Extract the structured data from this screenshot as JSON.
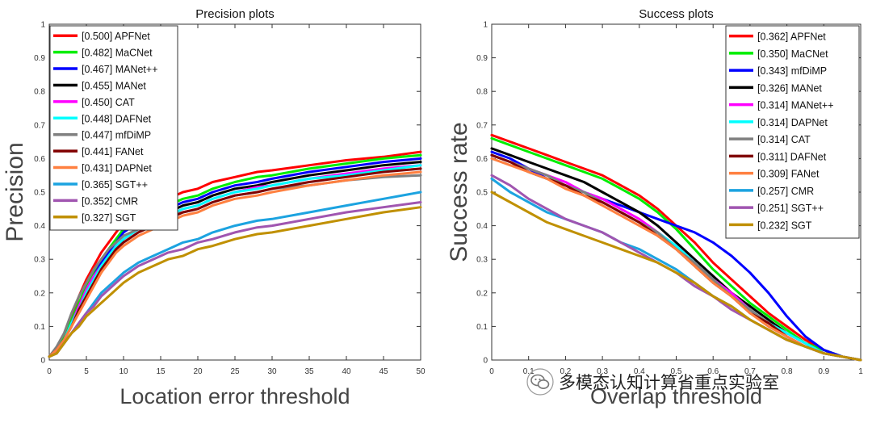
{
  "chart_data": [
    {
      "type": "line",
      "title": "Precision plots",
      "xlabel": "Location error threshold",
      "ylabel": "Precision",
      "xlim": [
        0,
        50
      ],
      "ylim": [
        0,
        1
      ],
      "xticks": [
        0,
        5,
        10,
        15,
        20,
        25,
        30,
        35,
        40,
        45,
        50
      ],
      "yticks": [
        0,
        0.1,
        0.2,
        0.3,
        0.4,
        0.5,
        0.6,
        0.7,
        0.8,
        0.9,
        1
      ],
      "x": [
        0,
        1,
        2,
        3,
        4,
        5,
        6,
        7,
        8,
        9,
        10,
        12,
        14,
        16,
        18,
        20,
        22,
        25,
        28,
        30,
        35,
        40,
        45,
        50
      ],
      "legend_position": "top-left",
      "series": [
        {
          "name": "APFNet",
          "score": "0.500",
          "color": "#ff0000",
          "values": [
            0.01,
            0.03,
            0.07,
            0.13,
            0.19,
            0.24,
            0.28,
            0.32,
            0.35,
            0.38,
            0.41,
            0.44,
            0.46,
            0.48,
            0.5,
            0.51,
            0.53,
            0.545,
            0.56,
            0.565,
            0.58,
            0.595,
            0.605,
            0.62
          ]
        },
        {
          "name": "MaCNet",
          "score": "0.482",
          "color": "#00ee00",
          "values": [
            0.01,
            0.03,
            0.07,
            0.12,
            0.17,
            0.22,
            0.26,
            0.3,
            0.33,
            0.36,
            0.39,
            0.42,
            0.44,
            0.46,
            0.48,
            0.49,
            0.51,
            0.53,
            0.545,
            0.55,
            0.57,
            0.585,
            0.6,
            0.61
          ]
        },
        {
          "name": "MANet++",
          "score": "0.467",
          "color": "#0000ff",
          "values": [
            0.01,
            0.03,
            0.06,
            0.11,
            0.16,
            0.21,
            0.25,
            0.29,
            0.32,
            0.35,
            0.38,
            0.41,
            0.43,
            0.45,
            0.47,
            0.48,
            0.5,
            0.52,
            0.53,
            0.54,
            0.56,
            0.575,
            0.59,
            0.6
          ]
        },
        {
          "name": "MANet",
          "score": "0.455",
          "color": "#000000",
          "values": [
            0.01,
            0.03,
            0.06,
            0.11,
            0.15,
            0.19,
            0.23,
            0.27,
            0.3,
            0.33,
            0.36,
            0.39,
            0.42,
            0.44,
            0.46,
            0.47,
            0.49,
            0.51,
            0.52,
            0.53,
            0.55,
            0.565,
            0.58,
            0.59
          ]
        },
        {
          "name": "CAT",
          "score": "0.450",
          "color": "#ff00ff",
          "values": [
            0.01,
            0.03,
            0.06,
            0.11,
            0.16,
            0.21,
            0.25,
            0.28,
            0.31,
            0.34,
            0.36,
            0.39,
            0.41,
            0.43,
            0.45,
            0.46,
            0.48,
            0.5,
            0.515,
            0.52,
            0.54,
            0.555,
            0.57,
            0.58
          ]
        },
        {
          "name": "DAFNet",
          "score": "0.448",
          "color": "#00ffff",
          "values": [
            0.01,
            0.03,
            0.06,
            0.11,
            0.15,
            0.2,
            0.24,
            0.28,
            0.31,
            0.34,
            0.36,
            0.39,
            0.41,
            0.43,
            0.45,
            0.46,
            0.48,
            0.5,
            0.51,
            0.52,
            0.54,
            0.55,
            0.565,
            0.58
          ]
        },
        {
          "name": "mfDiMP",
          "score": "0.447",
          "color": "#808080",
          "values": [
            0.01,
            0.04,
            0.08,
            0.14,
            0.19,
            0.23,
            0.27,
            0.3,
            0.33,
            0.35,
            0.37,
            0.39,
            0.41,
            0.43,
            0.44,
            0.45,
            0.47,
            0.49,
            0.5,
            0.51,
            0.52,
            0.535,
            0.545,
            0.55
          ]
        },
        {
          "name": "FANet",
          "score": "0.441",
          "color": "#800000",
          "values": [
            0.01,
            0.03,
            0.06,
            0.1,
            0.15,
            0.19,
            0.23,
            0.27,
            0.3,
            0.33,
            0.35,
            0.38,
            0.4,
            0.42,
            0.44,
            0.45,
            0.47,
            0.49,
            0.5,
            0.51,
            0.53,
            0.545,
            0.56,
            0.57
          ]
        },
        {
          "name": "DAPNet",
          "score": "0.431",
          "color": "#ff8040",
          "values": [
            0.01,
            0.03,
            0.06,
            0.1,
            0.14,
            0.18,
            0.22,
            0.26,
            0.29,
            0.32,
            0.34,
            0.37,
            0.39,
            0.41,
            0.43,
            0.44,
            0.46,
            0.48,
            0.49,
            0.5,
            0.52,
            0.535,
            0.55,
            0.56
          ]
        },
        {
          "name": "SGT++",
          "score": "0.365",
          "color": "#1ca3e0",
          "values": [
            0.01,
            0.02,
            0.05,
            0.08,
            0.11,
            0.14,
            0.17,
            0.2,
            0.22,
            0.24,
            0.26,
            0.29,
            0.31,
            0.33,
            0.35,
            0.36,
            0.38,
            0.4,
            0.415,
            0.42,
            0.44,
            0.46,
            0.48,
            0.5
          ]
        },
        {
          "name": "CMR",
          "score": "0.352",
          "color": "#a055b0",
          "values": [
            0.01,
            0.02,
            0.05,
            0.08,
            0.11,
            0.14,
            0.16,
            0.19,
            0.21,
            0.23,
            0.25,
            0.28,
            0.3,
            0.32,
            0.33,
            0.35,
            0.36,
            0.38,
            0.395,
            0.4,
            0.42,
            0.44,
            0.455,
            0.47
          ]
        },
        {
          "name": "SGT",
          "score": "0.327",
          "color": "#c09000",
          "values": [
            0.01,
            0.02,
            0.05,
            0.08,
            0.1,
            0.13,
            0.15,
            0.17,
            0.19,
            0.21,
            0.23,
            0.26,
            0.28,
            0.3,
            0.31,
            0.33,
            0.34,
            0.36,
            0.375,
            0.38,
            0.4,
            0.42,
            0.44,
            0.455
          ]
        }
      ]
    },
    {
      "type": "line",
      "title": "Success plots",
      "xlabel": "Overlap threshold",
      "ylabel": "Success rate",
      "xlim": [
        0,
        1
      ],
      "ylim": [
        0,
        1
      ],
      "xticks": [
        0,
        0.1,
        0.2,
        0.3,
        0.4,
        0.5,
        0.6,
        0.7,
        0.8,
        0.9,
        1
      ],
      "yticks": [
        0,
        0.1,
        0.2,
        0.3,
        0.4,
        0.5,
        0.6,
        0.7,
        0.8,
        0.9,
        1
      ],
      "x": [
        0,
        0.05,
        0.1,
        0.15,
        0.2,
        0.25,
        0.3,
        0.35,
        0.4,
        0.45,
        0.5,
        0.55,
        0.6,
        0.65,
        0.7,
        0.75,
        0.8,
        0.85,
        0.9,
        0.95,
        1.0
      ],
      "legend_position": "top-right",
      "series": [
        {
          "name": "APFNet",
          "score": "0.362",
          "color": "#ff0000",
          "values": [
            0.67,
            0.65,
            0.63,
            0.61,
            0.59,
            0.57,
            0.55,
            0.52,
            0.49,
            0.45,
            0.4,
            0.35,
            0.29,
            0.24,
            0.19,
            0.14,
            0.1,
            0.06,
            0.03,
            0.01,
            0.0
          ]
        },
        {
          "name": "MaCNet",
          "score": "0.350",
          "color": "#00ee00",
          "values": [
            0.66,
            0.64,
            0.62,
            0.6,
            0.58,
            0.56,
            0.54,
            0.51,
            0.48,
            0.44,
            0.39,
            0.33,
            0.27,
            0.22,
            0.17,
            0.13,
            0.09,
            0.05,
            0.03,
            0.01,
            0.0
          ]
        },
        {
          "name": "mfDiMP",
          "score": "0.343",
          "color": "#0000ff",
          "values": [
            0.62,
            0.6,
            0.57,
            0.54,
            0.52,
            0.5,
            0.48,
            0.46,
            0.44,
            0.42,
            0.4,
            0.38,
            0.35,
            0.31,
            0.26,
            0.2,
            0.13,
            0.07,
            0.03,
            0.01,
            0.0
          ]
        },
        {
          "name": "MANet",
          "score": "0.326",
          "color": "#000000",
          "values": [
            0.63,
            0.61,
            0.59,
            0.57,
            0.55,
            0.53,
            0.5,
            0.47,
            0.44,
            0.4,
            0.35,
            0.3,
            0.25,
            0.2,
            0.16,
            0.12,
            0.08,
            0.05,
            0.02,
            0.01,
            0.0
          ]
        },
        {
          "name": "MANet++",
          "score": "0.314",
          "color": "#ff00ff",
          "values": [
            0.61,
            0.59,
            0.57,
            0.55,
            0.53,
            0.5,
            0.48,
            0.45,
            0.42,
            0.38,
            0.34,
            0.29,
            0.24,
            0.2,
            0.15,
            0.11,
            0.08,
            0.05,
            0.02,
            0.01,
            0.0
          ]
        },
        {
          "name": "DAPNet",
          "score": "0.314",
          "color": "#00ffff",
          "values": [
            0.61,
            0.59,
            0.56,
            0.54,
            0.52,
            0.5,
            0.47,
            0.44,
            0.41,
            0.38,
            0.34,
            0.29,
            0.24,
            0.19,
            0.15,
            0.11,
            0.08,
            0.05,
            0.02,
            0.01,
            0.0
          ]
        },
        {
          "name": "CAT",
          "score": "0.314",
          "color": "#808080",
          "values": [
            0.61,
            0.59,
            0.57,
            0.55,
            0.52,
            0.5,
            0.47,
            0.44,
            0.41,
            0.38,
            0.33,
            0.29,
            0.24,
            0.19,
            0.15,
            0.11,
            0.07,
            0.04,
            0.02,
            0.01,
            0.0
          ]
        },
        {
          "name": "DAFNet",
          "score": "0.311",
          "color": "#800000",
          "values": [
            0.61,
            0.59,
            0.56,
            0.54,
            0.52,
            0.49,
            0.47,
            0.44,
            0.41,
            0.37,
            0.33,
            0.28,
            0.23,
            0.19,
            0.14,
            0.11,
            0.07,
            0.04,
            0.02,
            0.01,
            0.0
          ]
        },
        {
          "name": "FANet",
          "score": "0.309",
          "color": "#ff8040",
          "values": [
            0.6,
            0.58,
            0.56,
            0.54,
            0.51,
            0.49,
            0.46,
            0.43,
            0.4,
            0.37,
            0.33,
            0.28,
            0.23,
            0.19,
            0.14,
            0.1,
            0.07,
            0.04,
            0.02,
            0.01,
            0.0
          ]
        },
        {
          "name": "CMR",
          "score": "0.257",
          "color": "#1ca3e0",
          "values": [
            0.54,
            0.5,
            0.47,
            0.44,
            0.42,
            0.4,
            0.38,
            0.35,
            0.33,
            0.3,
            0.27,
            0.23,
            0.19,
            0.16,
            0.12,
            0.09,
            0.06,
            0.04,
            0.02,
            0.01,
            0.0
          ]
        },
        {
          "name": "SGT++",
          "score": "0.251",
          "color": "#a055b0",
          "values": [
            0.55,
            0.52,
            0.48,
            0.45,
            0.42,
            0.4,
            0.38,
            0.35,
            0.32,
            0.29,
            0.26,
            0.22,
            0.19,
            0.15,
            0.12,
            0.09,
            0.06,
            0.04,
            0.02,
            0.01,
            0.0
          ]
        },
        {
          "name": "SGT",
          "score": "0.232",
          "color": "#c09000",
          "values": [
            0.5,
            0.47,
            0.44,
            0.41,
            0.39,
            0.37,
            0.35,
            0.33,
            0.31,
            0.29,
            0.26,
            0.23,
            0.19,
            0.16,
            0.12,
            0.09,
            0.06,
            0.04,
            0.02,
            0.01,
            0.0
          ]
        }
      ]
    }
  ],
  "watermark": {
    "text": "多模态认知计算省重点实验室",
    "icon": "wechat-icon"
  }
}
